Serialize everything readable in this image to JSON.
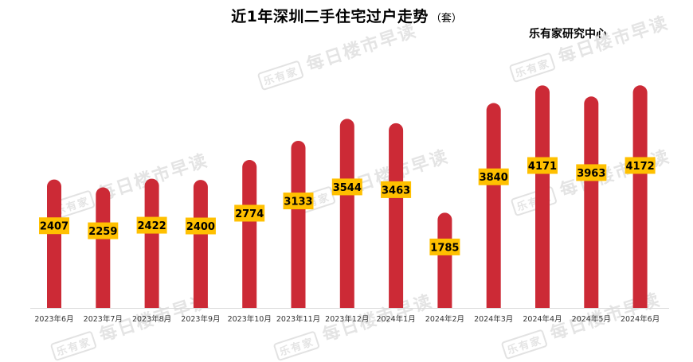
{
  "chart_data": {
    "type": "bar",
    "title": "近1年深圳二手住宅过户走势",
    "unit": "（套）",
    "source": "乐有家研究中心",
    "categories": [
      "2023年6月",
      "2023年7月",
      "2023年8月",
      "2023年9月",
      "2023年10月",
      "2023年11月",
      "2023年12月",
      "2024年1月",
      "2024年2月",
      "2024年3月",
      "2024年4月",
      "2024年5月",
      "2024年6月"
    ],
    "values": [
      2407,
      2259,
      2422,
      2400,
      2774,
      3133,
      3544,
      3463,
      1785,
      3840,
      4171,
      3963,
      4172
    ],
    "ylim": [
      0,
      4400
    ],
    "bar_color": "#cc2a36",
    "label_bg": "#ffc000",
    "grid": false,
    "legend": "none"
  },
  "watermark": {
    "logo": "乐有家",
    "text": "每日楼市早读"
  }
}
